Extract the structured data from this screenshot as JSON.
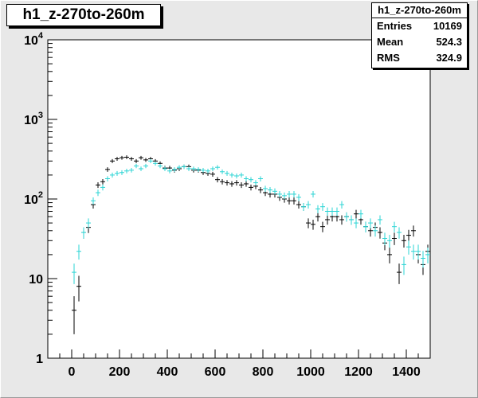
{
  "chart_data": {
    "type": "scatter",
    "title": "h1_z-270to-260m",
    "stats": {
      "title": "h1_z-270to-260m",
      "rows": [
        {
          "label": "Entries",
          "value": "10169"
        },
        {
          "label": "Mean",
          "value": "524.3"
        },
        {
          "label": "RMS",
          "value": "324.9"
        }
      ]
    },
    "x_axis": {
      "range": [
        -100,
        1500
      ],
      "scale": "linear",
      "ticks": [
        0,
        200,
        400,
        600,
        800,
        1000,
        1200,
        1400
      ],
      "tick_labels": [
        "0",
        "200",
        "400",
        "600",
        "800",
        "1000",
        "1200",
        "1400"
      ]
    },
    "y_axis": {
      "range": [
        1,
        10000
      ],
      "scale": "log",
      "ticks": [
        1,
        10,
        100,
        1000,
        10000
      ],
      "tick_labels": [
        {
          "base": "1",
          "exp": ""
        },
        {
          "base": "10",
          "exp": ""
        },
        {
          "base": "10",
          "exp": "2"
        },
        {
          "base": "10",
          "exp": "3"
        },
        {
          "base": "10",
          "exp": "4"
        }
      ]
    },
    "grid": false,
    "bin_width": 20,
    "series": [
      {
        "color": "#000000",
        "points": [
          [
            10,
            4
          ],
          [
            30,
            8
          ],
          [
            50,
            38
          ],
          [
            70,
            44
          ],
          [
            90,
            85
          ],
          [
            110,
            150
          ],
          [
            130,
            165
          ],
          [
            150,
            235
          ],
          [
            170,
            300
          ],
          [
            190,
            320
          ],
          [
            210,
            330
          ],
          [
            230,
            335
          ],
          [
            250,
            320
          ],
          [
            270,
            300
          ],
          [
            290,
            330
          ],
          [
            310,
            310
          ],
          [
            330,
            320
          ],
          [
            350,
            300
          ],
          [
            370,
            280
          ],
          [
            390,
            245
          ],
          [
            410,
            245
          ],
          [
            430,
            230
          ],
          [
            450,
            240
          ],
          [
            470,
            255
          ],
          [
            490,
            255
          ],
          [
            510,
            230
          ],
          [
            530,
            230
          ],
          [
            550,
            215
          ],
          [
            570,
            210
          ],
          [
            590,
            205
          ],
          [
            610,
            175
          ],
          [
            630,
            165
          ],
          [
            650,
            160
          ],
          [
            670,
            155
          ],
          [
            690,
            160
          ],
          [
            710,
            150
          ],
          [
            730,
            155
          ],
          [
            750,
            140
          ],
          [
            770,
            145
          ],
          [
            790,
            130
          ],
          [
            810,
            120
          ],
          [
            830,
            115
          ],
          [
            850,
            115
          ],
          [
            870,
            105
          ],
          [
            890,
            100
          ],
          [
            910,
            95
          ],
          [
            930,
            95
          ],
          [
            950,
            85
          ],
          [
            970,
            80
          ],
          [
            990,
            50
          ],
          [
            1010,
            48
          ],
          [
            1030,
            60
          ],
          [
            1050,
            45
          ],
          [
            1070,
            55
          ],
          [
            1090,
            60
          ],
          [
            1110,
            60
          ],
          [
            1130,
            55
          ],
          [
            1150,
            60
          ],
          [
            1170,
            55
          ],
          [
            1190,
            65
          ],
          [
            1210,
            55
          ],
          [
            1230,
            45
          ],
          [
            1250,
            40
          ],
          [
            1270,
            44
          ],
          [
            1290,
            38
          ],
          [
            1310,
            28
          ],
          [
            1330,
            20
          ],
          [
            1350,
            32
          ],
          [
            1370,
            12
          ],
          [
            1390,
            30
          ],
          [
            1410,
            35
          ],
          [
            1430,
            40
          ],
          [
            1450,
            20
          ],
          [
            1470,
            15
          ],
          [
            1490,
            22
          ]
        ]
      },
      {
        "color": "#2ad4d4",
        "points": [
          [
            10,
            12
          ],
          [
            30,
            22
          ],
          [
            50,
            38
          ],
          [
            70,
            50
          ],
          [
            90,
            95
          ],
          [
            110,
            120
          ],
          [
            130,
            140
          ],
          [
            150,
            180
          ],
          [
            170,
            200
          ],
          [
            190,
            210
          ],
          [
            210,
            215
          ],
          [
            230,
            225
          ],
          [
            250,
            230
          ],
          [
            270,
            260
          ],
          [
            290,
            240
          ],
          [
            310,
            260
          ],
          [
            330,
            300
          ],
          [
            350,
            280
          ],
          [
            370,
            260
          ],
          [
            390,
            240
          ],
          [
            410,
            225
          ],
          [
            430,
            235
          ],
          [
            450,
            250
          ],
          [
            470,
            255
          ],
          [
            490,
            240
          ],
          [
            510,
            240
          ],
          [
            530,
            235
          ],
          [
            550,
            230
          ],
          [
            570,
            225
          ],
          [
            590,
            240
          ],
          [
            610,
            250
          ],
          [
            630,
            220
          ],
          [
            650,
            210
          ],
          [
            670,
            200
          ],
          [
            690,
            195
          ],
          [
            710,
            200
          ],
          [
            730,
            180
          ],
          [
            750,
            175
          ],
          [
            770,
            160
          ],
          [
            790,
            180
          ],
          [
            810,
            135
          ],
          [
            830,
            130
          ],
          [
            850,
            125
          ],
          [
            870,
            115
          ],
          [
            890,
            110
          ],
          [
            910,
            115
          ],
          [
            930,
            115
          ],
          [
            950,
            105
          ],
          [
            970,
            80
          ],
          [
            990,
            85
          ],
          [
            1010,
            115
          ],
          [
            1030,
            75
          ],
          [
            1050,
            80
          ],
          [
            1070,
            70
          ],
          [
            1090,
            70
          ],
          [
            1110,
            70
          ],
          [
            1130,
            85
          ],
          [
            1150,
            60
          ],
          [
            1170,
            55
          ],
          [
            1190,
            50
          ],
          [
            1210,
            65
          ],
          [
            1230,
            45
          ],
          [
            1250,
            50
          ],
          [
            1270,
            40
          ],
          [
            1290,
            55
          ],
          [
            1310,
            32
          ],
          [
            1330,
            30
          ],
          [
            1350,
            45
          ],
          [
            1370,
            38
          ],
          [
            1390,
            15
          ],
          [
            1410,
            25
          ],
          [
            1430,
            22
          ],
          [
            1450,
            22
          ],
          [
            1470,
            18
          ],
          [
            1490,
            20
          ]
        ]
      }
    ]
  }
}
